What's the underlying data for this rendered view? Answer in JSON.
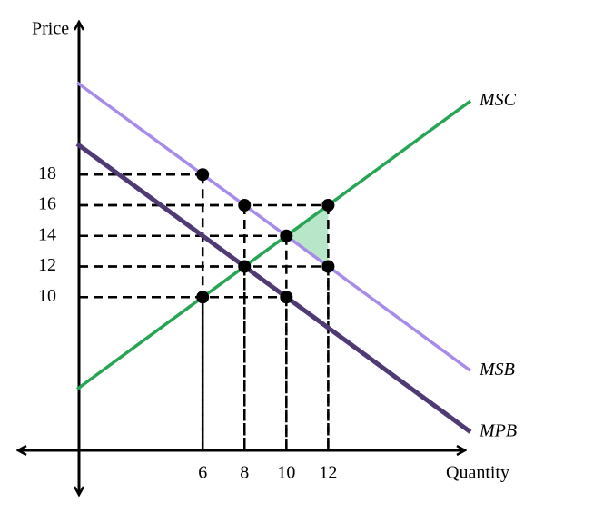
{
  "chart_data": {
    "type": "line",
    "x_label": "Quantity",
    "y_label": "Price",
    "x": [
      0,
      18.8
    ],
    "series": [
      {
        "name": "MSC",
        "color": "#27a555",
        "values": [
          4,
          22.8
        ]
      },
      {
        "name": "MSB",
        "color": "#a78bea",
        "values": [
          24,
          5.2
        ]
      },
      {
        "name": "MPB",
        "color": "#4f3a73",
        "values": [
          20,
          1.2
        ]
      }
    ],
    "points": {
      "x": [
        6,
        8,
        12,
        10,
        8,
        12,
        6,
        10
      ],
      "y": [
        18,
        16,
        16,
        14,
        12,
        12,
        10,
        10
      ]
    },
    "shaded_area": {
      "color": "#b8e6c8",
      "x": [
        10,
        12,
        12
      ],
      "y": [
        14,
        16,
        12
      ]
    },
    "xlim": [
      0,
      18.8
    ],
    "ylim": [
      0,
      24
    ],
    "xticks": [
      6,
      8,
      10,
      12
    ],
    "yticks": [
      10,
      12,
      14,
      16,
      18
    ]
  }
}
